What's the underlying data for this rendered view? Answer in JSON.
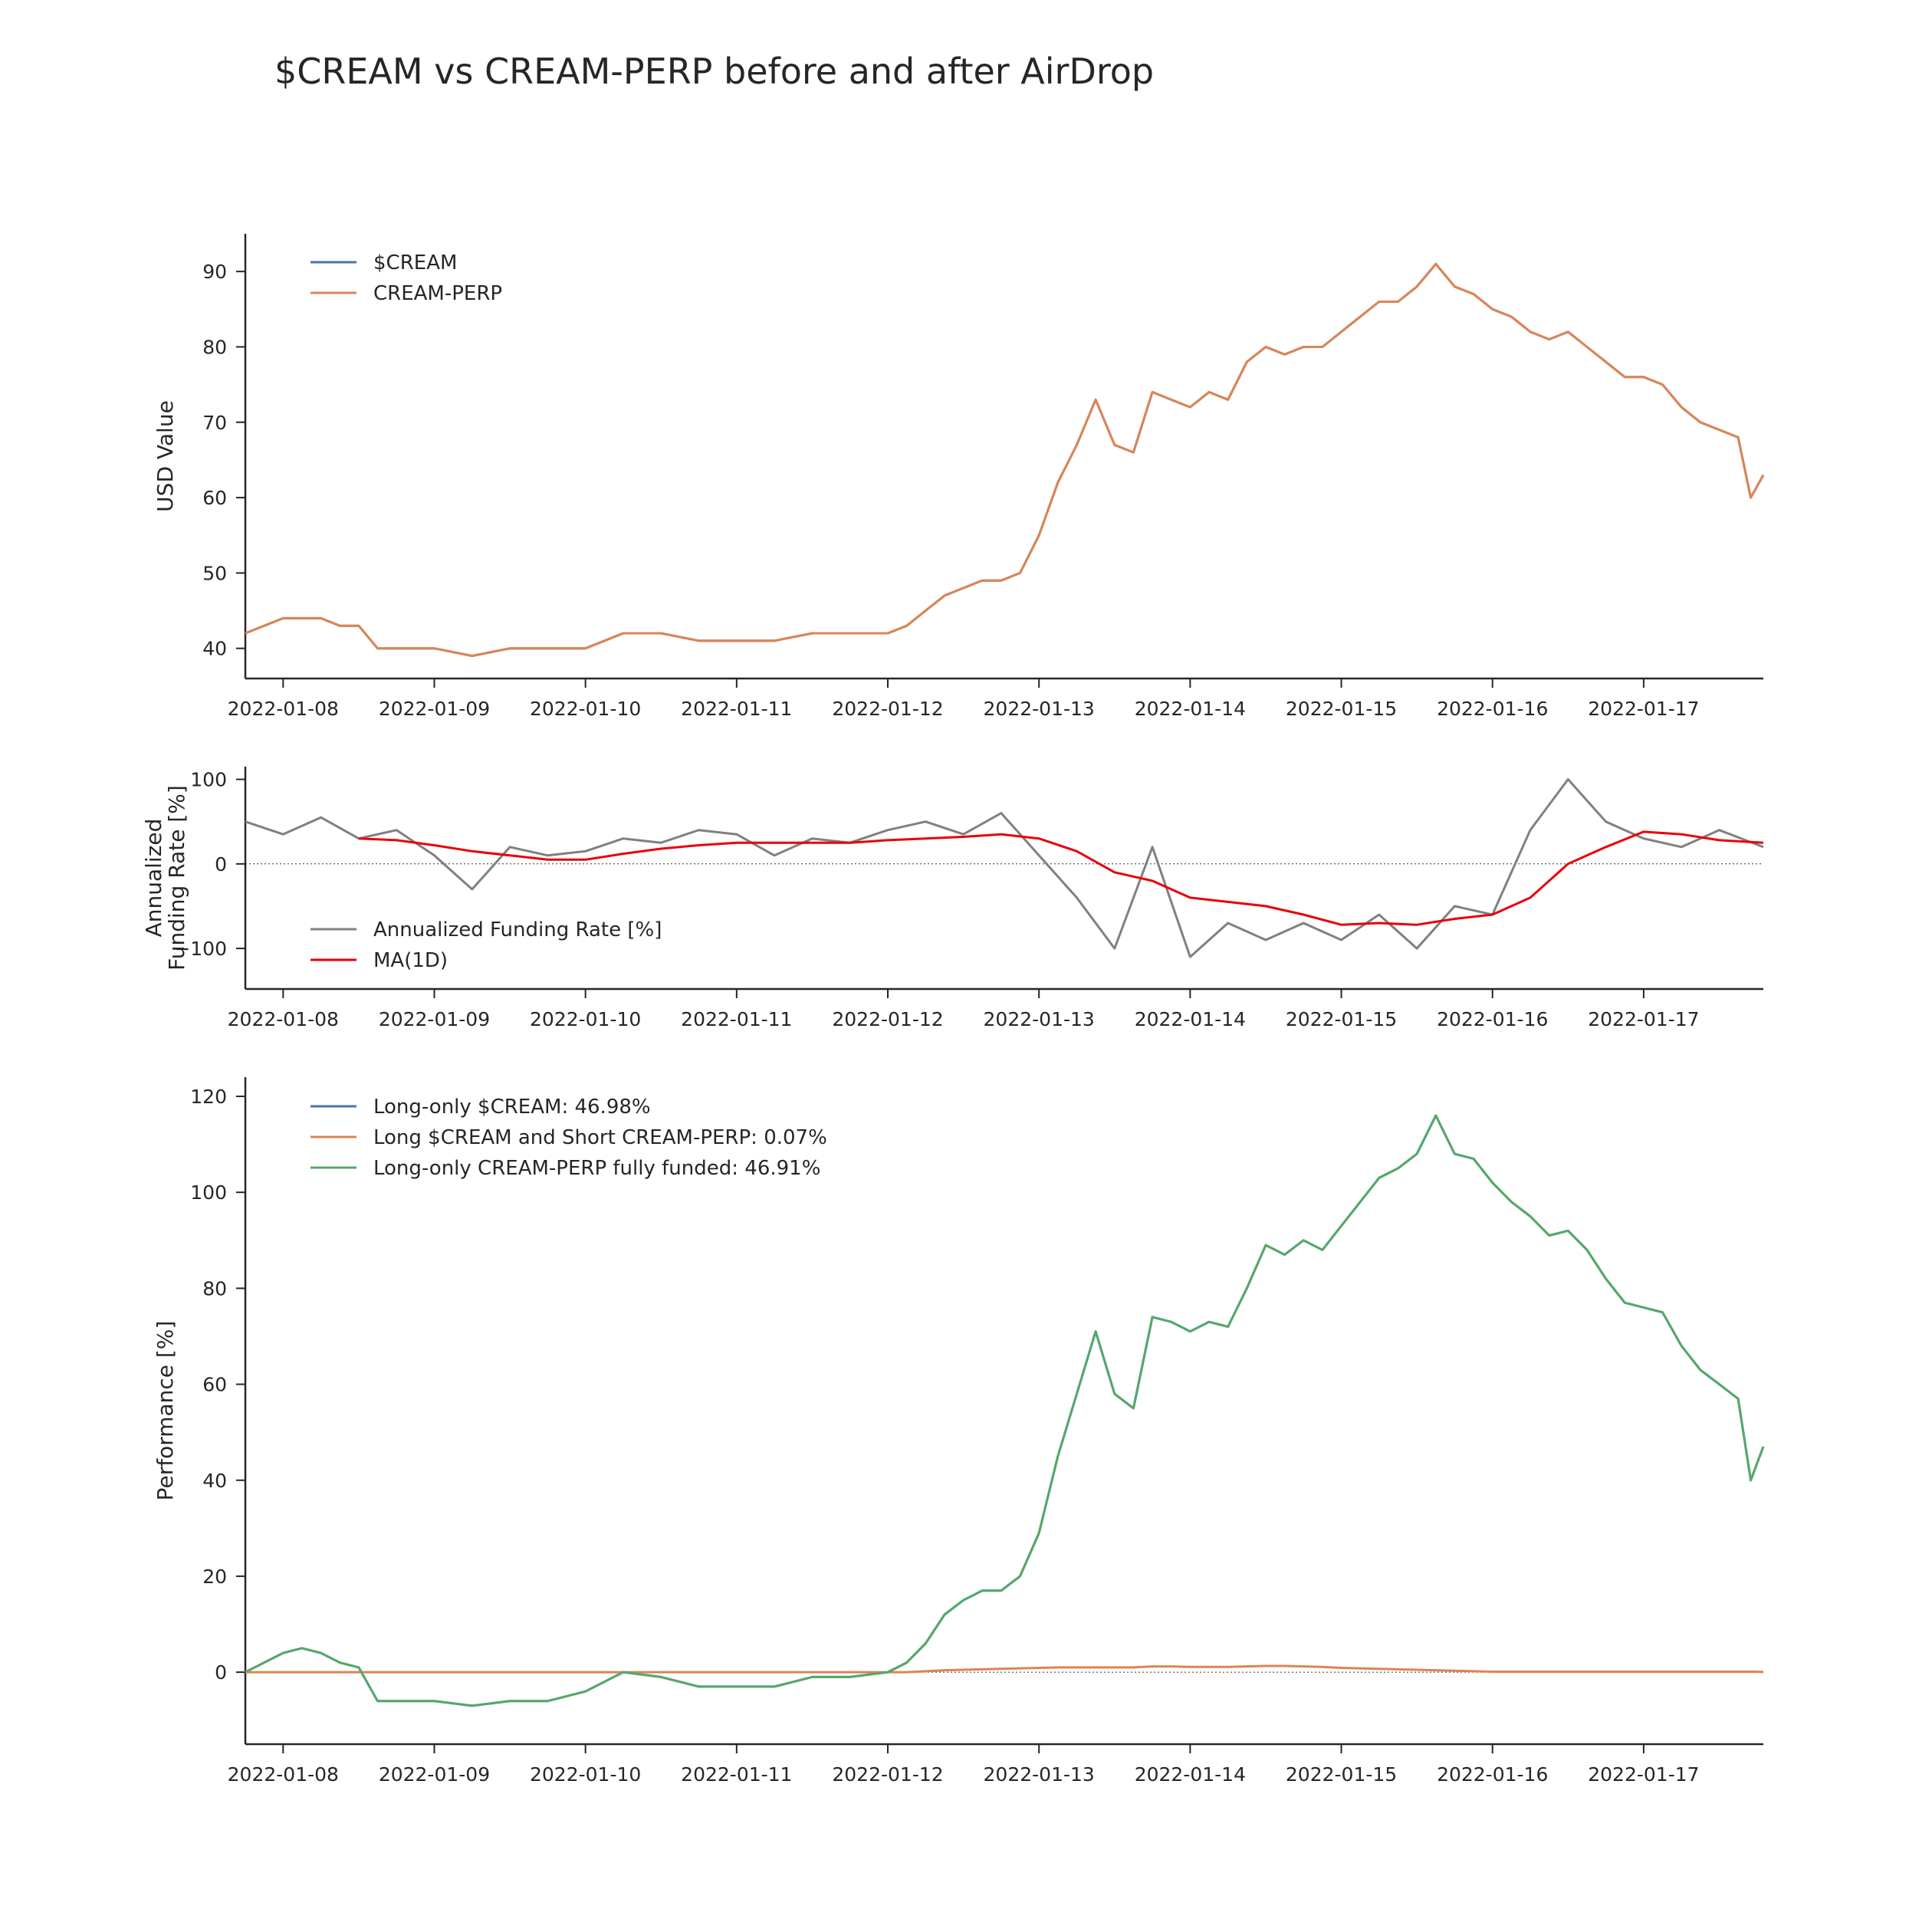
{
  "title": "$CREAM vs CREAM-PERP before and after AirDrop",
  "colors": {
    "blue": "#4c72b0",
    "orange": "#dd8452",
    "green": "#55a868",
    "gray": "#808080",
    "red": "#e8000b",
    "axis": "#262626"
  },
  "chart_data": [
    {
      "type": "line",
      "ylabel": "USD Value",
      "xlim": [
        "2022-01-07 18:00",
        "2022-01-17 19:00"
      ],
      "ylim": [
        36,
        95
      ],
      "yticks": [
        40,
        50,
        60,
        70,
        80,
        90
      ],
      "xticks": [
        "2022-01-08",
        "2022-01-09",
        "2022-01-10",
        "2022-01-11",
        "2022-01-12",
        "2022-01-13",
        "2022-01-14",
        "2022-01-15",
        "2022-01-16",
        "2022-01-17"
      ],
      "legend_position": "upper-left",
      "anchors_note_free": true,
      "x": [
        "2022-01-07 18:00",
        "2022-01-07 21:00",
        "2022-01-08 00:00",
        "2022-01-08 03:00",
        "2022-01-08 06:00",
        "2022-01-08 09:00",
        "2022-01-08 12:00",
        "2022-01-08 15:00",
        "2022-01-08 18:00",
        "2022-01-08 21:00",
        "2022-01-09 00:00",
        "2022-01-09 06:00",
        "2022-01-09 12:00",
        "2022-01-09 18:00",
        "2022-01-10 00:00",
        "2022-01-10 06:00",
        "2022-01-10 12:00",
        "2022-01-10 18:00",
        "2022-01-11 00:00",
        "2022-01-11 06:00",
        "2022-01-11 12:00",
        "2022-01-11 18:00",
        "2022-01-12 00:00",
        "2022-01-12 03:00",
        "2022-01-12 06:00",
        "2022-01-12 09:00",
        "2022-01-12 12:00",
        "2022-01-12 15:00",
        "2022-01-12 18:00",
        "2022-01-12 21:00",
        "2022-01-13 00:00",
        "2022-01-13 03:00",
        "2022-01-13 06:00",
        "2022-01-13 09:00",
        "2022-01-13 12:00",
        "2022-01-13 15:00",
        "2022-01-13 18:00",
        "2022-01-13 21:00",
        "2022-01-14 00:00",
        "2022-01-14 03:00",
        "2022-01-14 06:00",
        "2022-01-14 09:00",
        "2022-01-14 12:00",
        "2022-01-14 15:00",
        "2022-01-14 18:00",
        "2022-01-14 21:00",
        "2022-01-15 00:00",
        "2022-01-15 03:00",
        "2022-01-15 06:00",
        "2022-01-15 09:00",
        "2022-01-15 12:00",
        "2022-01-15 15:00",
        "2022-01-15 18:00",
        "2022-01-15 21:00",
        "2022-01-16 00:00",
        "2022-01-16 03:00",
        "2022-01-16 06:00",
        "2022-01-16 09:00",
        "2022-01-16 12:00",
        "2022-01-16 15:00",
        "2022-01-16 18:00",
        "2022-01-16 21:00",
        "2022-01-17 00:00",
        "2022-01-17 03:00",
        "2022-01-17 06:00",
        "2022-01-17 09:00",
        "2022-01-17 12:00",
        "2022-01-17 15:00",
        "2022-01-17 17:00",
        "2022-01-17 19:00"
      ],
      "series": [
        {
          "name": "$CREAM",
          "color": "#4c72b0",
          "values": [
            42,
            43,
            44,
            44,
            44,
            43,
            43,
            40,
            40,
            40,
            40,
            39,
            40,
            40,
            40,
            42,
            42,
            41,
            41,
            41,
            42,
            42,
            42,
            43,
            45,
            47,
            48,
            49,
            49,
            50,
            55,
            62,
            67,
            73,
            67,
            66,
            74,
            73,
            72,
            74,
            73,
            78,
            80,
            79,
            80,
            80,
            82,
            84,
            86,
            86,
            88,
            91,
            88,
            87,
            85,
            84,
            82,
            81,
            82,
            80,
            78,
            76,
            76,
            75,
            72,
            70,
            69,
            68,
            60,
            63
          ]
        },
        {
          "name": "CREAM-PERP",
          "color": "#dd8452",
          "values": [
            42,
            43,
            44,
            44,
            44,
            43,
            43,
            40,
            40,
            40,
            40,
            39,
            40,
            40,
            40,
            42,
            42,
            41,
            41,
            41,
            42,
            42,
            42,
            43,
            45,
            47,
            48,
            49,
            49,
            50,
            55,
            62,
            67,
            73,
            67,
            66,
            74,
            73,
            72,
            74,
            73,
            78,
            80,
            79,
            80,
            80,
            82,
            84,
            86,
            86,
            88,
            91,
            88,
            87,
            85,
            84,
            82,
            81,
            82,
            80,
            78,
            76,
            76,
            75,
            72,
            70,
            69,
            68,
            60,
            63
          ]
        }
      ]
    },
    {
      "type": "line",
      "ylabel": "Annualized\nFunding Rate [%]",
      "ylim": [
        -148,
        115
      ],
      "yticks": [
        -100,
        0,
        100
      ],
      "xticks": [
        "2022-01-08",
        "2022-01-09",
        "2022-01-10",
        "2022-01-11",
        "2022-01-12",
        "2022-01-13",
        "2022-01-14",
        "2022-01-15",
        "2022-01-16",
        "2022-01-17"
      ],
      "legend_position": "lower-left",
      "zero_line": true,
      "x": [
        "2022-01-07 18:00",
        "2022-01-08 00:00",
        "2022-01-08 06:00",
        "2022-01-08 12:00",
        "2022-01-08 18:00",
        "2022-01-09 00:00",
        "2022-01-09 06:00",
        "2022-01-09 12:00",
        "2022-01-09 18:00",
        "2022-01-10 00:00",
        "2022-01-10 06:00",
        "2022-01-10 12:00",
        "2022-01-10 18:00",
        "2022-01-11 00:00",
        "2022-01-11 06:00",
        "2022-01-11 12:00",
        "2022-01-11 18:00",
        "2022-01-12 00:00",
        "2022-01-12 06:00",
        "2022-01-12 12:00",
        "2022-01-12 18:00",
        "2022-01-13 00:00",
        "2022-01-13 06:00",
        "2022-01-13 12:00",
        "2022-01-13 18:00",
        "2022-01-14 00:00",
        "2022-01-14 06:00",
        "2022-01-14 12:00",
        "2022-01-14 18:00",
        "2022-01-15 00:00",
        "2022-01-15 06:00",
        "2022-01-15 12:00",
        "2022-01-15 18:00",
        "2022-01-16 00:00",
        "2022-01-16 06:00",
        "2022-01-16 12:00",
        "2022-01-16 18:00",
        "2022-01-17 00:00",
        "2022-01-17 06:00",
        "2022-01-17 12:00",
        "2022-01-17 19:00"
      ],
      "series": [
        {
          "name": "Annualized Funding Rate [%]",
          "color": "#808080",
          "values": [
            50,
            35,
            55,
            30,
            40,
            10,
            -30,
            20,
            10,
            15,
            30,
            25,
            40,
            35,
            10,
            30,
            25,
            40,
            50,
            35,
            60,
            10,
            -40,
            -100,
            20,
            -110,
            -70,
            -90,
            -70,
            -90,
            -60,
            -100,
            -50,
            -60,
            40,
            100,
            50,
            30,
            20,
            40,
            20
          ]
        },
        {
          "name": "MA(1D)",
          "color": "#e8000b",
          "values": [
            null,
            null,
            null,
            30,
            28,
            22,
            15,
            10,
            5,
            5,
            12,
            18,
            22,
            25,
            25,
            25,
            25,
            28,
            30,
            32,
            35,
            30,
            15,
            -10,
            -20,
            -40,
            -45,
            -50,
            -60,
            -72,
            -70,
            -72,
            -65,
            -60,
            -40,
            0,
            20,
            38,
            35,
            28,
            25
          ]
        }
      ]
    },
    {
      "type": "line",
      "ylabel": "Performance [%]",
      "ylim": [
        -15,
        124
      ],
      "yticks": [
        0,
        20,
        40,
        60,
        80,
        100,
        120
      ],
      "xticks": [
        "2022-01-08",
        "2022-01-09",
        "2022-01-10",
        "2022-01-11",
        "2022-01-12",
        "2022-01-13",
        "2022-01-14",
        "2022-01-15",
        "2022-01-16",
        "2022-01-17"
      ],
      "legend_position": "upper-left",
      "zero_line": true,
      "x": [
        "2022-01-07 18:00",
        "2022-01-07 21:00",
        "2022-01-08 00:00",
        "2022-01-08 03:00",
        "2022-01-08 06:00",
        "2022-01-08 09:00",
        "2022-01-08 12:00",
        "2022-01-08 15:00",
        "2022-01-08 18:00",
        "2022-01-08 21:00",
        "2022-01-09 00:00",
        "2022-01-09 06:00",
        "2022-01-09 12:00",
        "2022-01-09 18:00",
        "2022-01-10 00:00",
        "2022-01-10 06:00",
        "2022-01-10 12:00",
        "2022-01-10 18:00",
        "2022-01-11 00:00",
        "2022-01-11 06:00",
        "2022-01-11 12:00",
        "2022-01-11 18:00",
        "2022-01-12 00:00",
        "2022-01-12 03:00",
        "2022-01-12 06:00",
        "2022-01-12 09:00",
        "2022-01-12 12:00",
        "2022-01-12 15:00",
        "2022-01-12 18:00",
        "2022-01-12 21:00",
        "2022-01-13 00:00",
        "2022-01-13 03:00",
        "2022-01-13 06:00",
        "2022-01-13 09:00",
        "2022-01-13 12:00",
        "2022-01-13 15:00",
        "2022-01-13 18:00",
        "2022-01-13 21:00",
        "2022-01-14 00:00",
        "2022-01-14 03:00",
        "2022-01-14 06:00",
        "2022-01-14 09:00",
        "2022-01-14 12:00",
        "2022-01-14 15:00",
        "2022-01-14 18:00",
        "2022-01-14 21:00",
        "2022-01-15 00:00",
        "2022-01-15 03:00",
        "2022-01-15 06:00",
        "2022-01-15 09:00",
        "2022-01-15 12:00",
        "2022-01-15 15:00",
        "2022-01-15 18:00",
        "2022-01-15 21:00",
        "2022-01-16 00:00",
        "2022-01-16 03:00",
        "2022-01-16 06:00",
        "2022-01-16 09:00",
        "2022-01-16 12:00",
        "2022-01-16 15:00",
        "2022-01-16 18:00",
        "2022-01-16 21:00",
        "2022-01-17 00:00",
        "2022-01-17 03:00",
        "2022-01-17 06:00",
        "2022-01-17 09:00",
        "2022-01-17 12:00",
        "2022-01-17 15:00",
        "2022-01-17 17:00",
        "2022-01-17 19:00"
      ],
      "series": [
        {
          "name": "Long-only $CREAM: 46.98%",
          "color": "#4c72b0",
          "values": [
            0,
            2,
            4,
            5,
            4,
            2,
            1,
            -6,
            -6,
            -6,
            -6,
            -7,
            -6,
            -6,
            -4,
            0,
            -1,
            -3,
            -3,
            -3,
            -1,
            -1,
            0,
            2,
            6,
            12,
            15,
            17,
            17,
            20,
            29,
            45,
            58,
            71,
            58,
            55,
            74,
            73,
            71,
            73,
            72,
            80,
            89,
            87,
            90,
            88,
            93,
            98,
            103,
            105,
            108,
            116,
            108,
            107,
            102,
            98,
            95,
            91,
            92,
            88,
            82,
            77,
            76,
            75,
            68,
            63,
            60,
            57,
            40,
            47
          ]
        },
        {
          "name": "Long $CREAM and Short CREAM-PERP: 0.07%",
          "color": "#dd8452",
          "values": [
            0,
            0,
            0,
            0,
            0,
            0,
            0,
            0,
            0,
            0,
            0,
            0,
            0,
            0,
            0,
            0,
            0,
            0,
            0,
            0,
            0,
            0,
            0,
            0,
            0.2,
            0.4,
            0.5,
            0.6,
            0.7,
            0.8,
            0.9,
            1,
            1,
            1,
            1,
            1,
            1.2,
            1.2,
            1.1,
            1.1,
            1.1,
            1.2,
            1.3,
            1.3,
            1.2,
            1.1,
            0.9,
            0.8,
            0.7,
            0.6,
            0.5,
            0.4,
            0.3,
            0.2,
            0.1,
            0.1,
            0.1,
            0.1,
            0.1,
            0.1,
            0.1,
            0.1,
            0.1,
            0.1,
            0.1,
            0.1,
            0.1,
            0.1,
            0.1,
            0.07
          ]
        },
        {
          "name": "Long-only CREAM-PERP fully funded: 46.91%",
          "color": "#55a868",
          "values": [
            0,
            2,
            4,
            5,
            4,
            2,
            1,
            -6,
            -6,
            -6,
            -6,
            -7,
            -6,
            -6,
            -4,
            0,
            -1,
            -3,
            -3,
            -3,
            -1,
            -1,
            0,
            2,
            6,
            12,
            15,
            17,
            17,
            20,
            29,
            45,
            58,
            71,
            58,
            55,
            74,
            73,
            71,
            73,
            72,
            80,
            89,
            87,
            90,
            88,
            93,
            98,
            103,
            105,
            108,
            116,
            108,
            107,
            102,
            98,
            95,
            91,
            92,
            88,
            82,
            77,
            76,
            75,
            68,
            63,
            60,
            57,
            40,
            47
          ]
        }
      ]
    }
  ]
}
